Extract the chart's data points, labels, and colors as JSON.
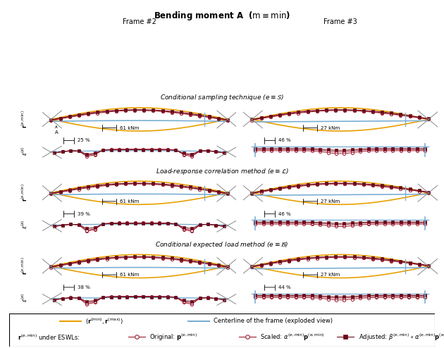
{
  "title": "Bending moment $\\mathbf{A}$",
  "title_suffix": "($\\mathrm{m} \\equiv \\min$)",
  "frame2_label": "Frame #2",
  "frame3_label": "Frame #3",
  "section_labels": [
    "Conditional sampling technique ($e \\equiv \\mathcal{S}$)",
    "Load-response correlation method ($e \\equiv \\mathcal{L}$)",
    "Conditional expected load method ($e \\equiv \\mathcal{B}$)"
  ],
  "scale_label_frame2": "61 kNm",
  "scale_label_frame3": "27 kNm",
  "percent_labels_frame2": [
    "25 %",
    "39 %",
    "38 %"
  ],
  "percent_labels_frame3": [
    "46 %",
    "46 %",
    "44 %"
  ],
  "orange_color": "#E8A000",
  "blue_color": "#7BAFD4",
  "crimson": "#9B1B30",
  "dark_red": "#6B0A1A",
  "bg_color": "#FFFFFF",
  "y_label_r": "$\\mathbf{r}^{(e,\\mathrm{min})}$",
  "y_label_e": "$\\varepsilon^{(e)}$"
}
